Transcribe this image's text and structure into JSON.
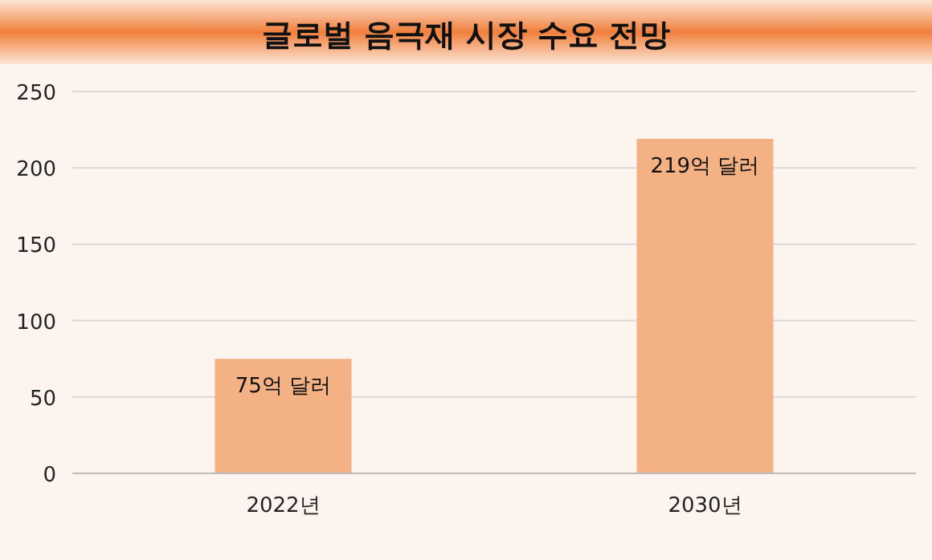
{
  "chart_data": {
    "type": "bar",
    "title": "글로벌 음극재 시장 수요 전망",
    "categories": [
      "2022년",
      "2030년"
    ],
    "values": [
      75,
      219
    ],
    "value_labels": [
      "75억 달러",
      "219억 달러"
    ],
    "color": "#f4b183",
    "ylim": [
      0,
      250
    ],
    "yticks": [
      0,
      50,
      100,
      150,
      200,
      250
    ],
    "grid": "y"
  }
}
